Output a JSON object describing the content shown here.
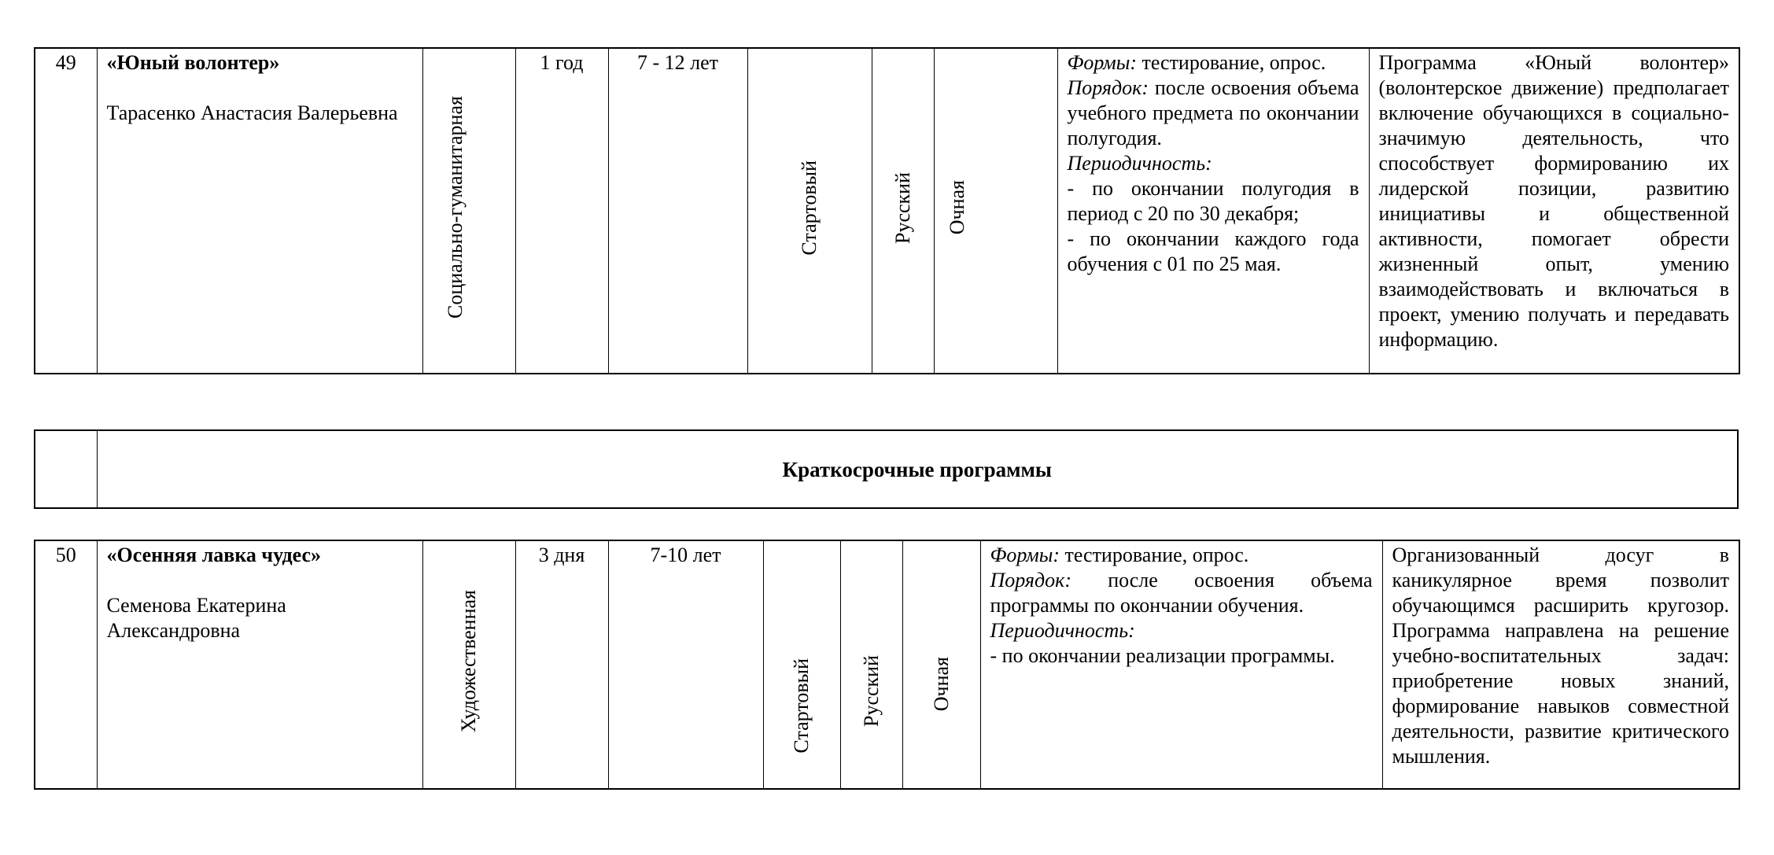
{
  "rows": [
    {
      "number": "49",
      "title": "«Юный волонтер»",
      "author": "Тарасенко Анастасия Валерьевна",
      "direction": "Социально-гуманитарная",
      "duration": "1 год",
      "age": "7 - 12 лет",
      "level": "Стартовый",
      "language": "Русский",
      "form": "Очная",
      "assessment": {
        "forms_label": "Формы:",
        "forms_text": " тестирование, опрос.",
        "order_label": "Порядок:",
        "order_text": " после освоения объема учебного предмета по окончании полугодия.",
        "period_label": "Периодичность:",
        "period_items": [
          "- по окончании полугодия в период с 20 по 30 декабря;",
          "- по окончании каждого года обучения с 01 по 25 мая."
        ]
      },
      "description": "Программа «Юный волонтер» (волонтерское движение) предполагает включение обучающихся в социально-значимую деятельность, что способствует формированию их лидерской позиции, развитию инициативы и общественной активности, помогает обрести жизненный опыт, умению взаимодействовать и включаться в проект, умению получать и передавать информацию."
    },
    {
      "number": "50",
      "title": "«Осенняя лавка чудес»",
      "author": "Семенова Екатерина Александровна",
      "direction": "Художественная",
      "duration": "3 дня",
      "age": "7-10 лет",
      "level": "Стартовый",
      "language": "Русский",
      "form": "Очная",
      "assessment": {
        "forms_label": "Формы:",
        "forms_text": " тестирование, опрос.",
        "order_label": "Порядок:",
        "order_text": " после освоения объема программы по окончании обучения.",
        "period_label": "Периодичность:",
        "period_items": [
          "- по окончании реализации программы."
        ]
      },
      "description": "Организованный досуг в каникулярное время позволит обучающимся расширить кругозор. Программа направлена на решение учебно-воспитательных задач: приобретение новых знаний, формирование навыков совместной деятельности, развитие критического мышления."
    }
  ],
  "section_heading": "Краткосрочные программы"
}
